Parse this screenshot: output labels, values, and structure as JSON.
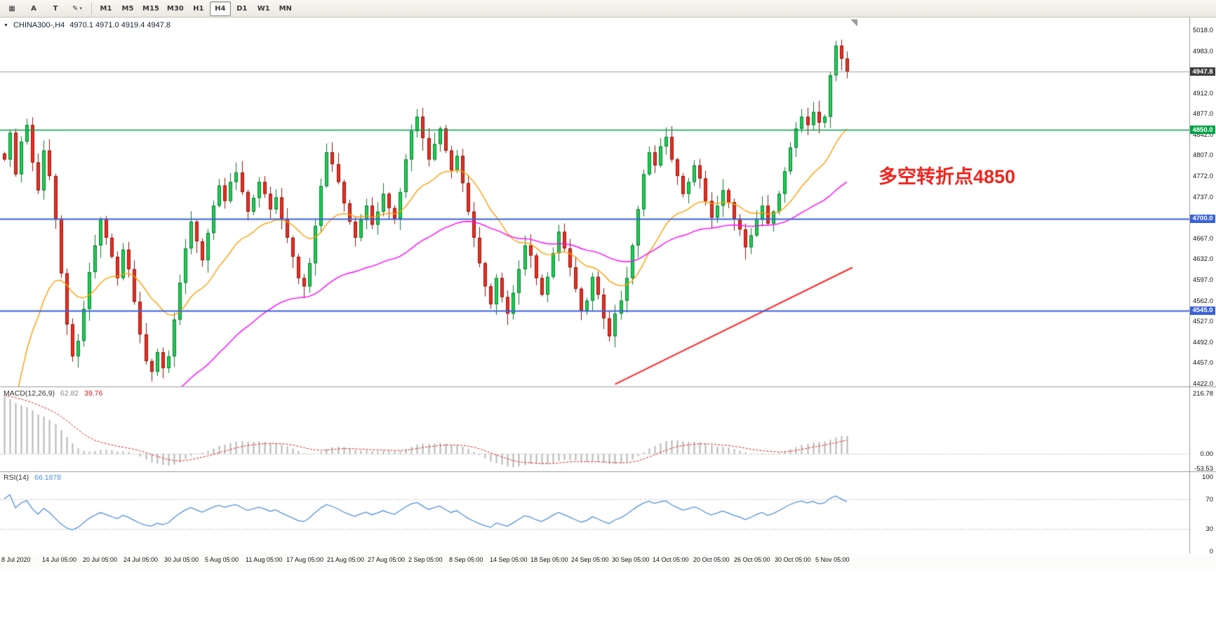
{
  "toolbar": {
    "left_icons": [
      {
        "name": "grid-icon",
        "glyph": "▦",
        "caret": false
      },
      {
        "name": "letter-a-cursor-icon",
        "glyph": "A",
        "caret": false
      },
      {
        "name": "text-tool-icon",
        "glyph": "T",
        "caret": false
      },
      {
        "name": "pencil-draw-tool-icon",
        "glyph": "✎",
        "caret": true
      }
    ],
    "caret_glyph": "▾",
    "timeframes": [
      "M1",
      "M5",
      "M15",
      "M30",
      "H1",
      "H4",
      "D1",
      "W1",
      "MN"
    ],
    "active_timeframe": "H4"
  },
  "chart": {
    "header": {
      "triangle": "▼",
      "symbol": "CHINA300-,H4",
      "ohlc": "4970.1 4971.0 4919.4 4947.8"
    },
    "shift_marker_glyph": "◥",
    "annotation": {
      "text": "多空转折点4850",
      "color": "#f1251f"
    },
    "price_axis": {
      "max": 5018,
      "min": 4422,
      "ticks": [
        "5018.0",
        "4983.0",
        "4912.0",
        "4877.0",
        "4842.0",
        "4807.0",
        "4772.0",
        "4737.0",
        "4667.0",
        "4632.0",
        "4597.0",
        "4562.0",
        "4527.0",
        "4492.0",
        "4457.0",
        "4422.0"
      ]
    },
    "price_labels": [
      {
        "label": "4947.8",
        "price": 4947.8,
        "bg": "#3f3f3f"
      },
      {
        "label": "4850.0",
        "price": 4850,
        "bg": "#00a346"
      },
      {
        "label": "4700.0",
        "price": 4700,
        "bg": "#3a62d8"
      },
      {
        "label": "4545.0",
        "price": 4545,
        "bg": "#3a62d8"
      }
    ],
    "levels": [
      {
        "price": 4850,
        "color": "#00a346",
        "width": 1.5
      },
      {
        "price": 4700,
        "color": "#3a62d8",
        "width": 2
      },
      {
        "price": 4545,
        "color": "#3a62d8",
        "width": 2
      },
      {
        "price": 4947.8,
        "color": "#a0a0a0",
        "width": 1
      }
    ],
    "trendline": {
      "from_index": 108,
      "from_price": 4421,
      "to_index": 150,
      "to_price": 4618,
      "color": "#ff2a2a"
    }
  },
  "chart_data": {
    "type": "candlestick",
    "symbol": "CHINA300-",
    "timeframe": "H4",
    "first_open": 4810,
    "closes": [
      4800,
      4845,
      4775,
      4830,
      4858,
      4795,
      4748,
      4815,
      4772,
      4700,
      4608,
      4522,
      4468,
      4494,
      4548,
      4610,
      4655,
      4700,
      4668,
      4636,
      4600,
      4648,
      4615,
      4560,
      4505,
      4460,
      4442,
      4475,
      4448,
      4468,
      4530,
      4592,
      4650,
      4695,
      4662,
      4630,
      4676,
      4722,
      4756,
      4730,
      4762,
      4778,
      4745,
      4712,
      4735,
      4762,
      4742,
      4716,
      4736,
      4700,
      4668,
      4636,
      4600,
      4586,
      4625,
      4688,
      4755,
      4812,
      4792,
      4762,
      4726,
      4695,
      4668,
      4698,
      4722,
      4690,
      4712,
      4742,
      4718,
      4700,
      4745,
      4800,
      4848,
      4872,
      4836,
      4800,
      4826,
      4852,
      4815,
      4782,
      4806,
      4760,
      4712,
      4668,
      4625,
      4586,
      4556,
      4600,
      4568,
      4540,
      4575,
      4615,
      4655,
      4638,
      4600,
      4572,
      4602,
      4642,
      4678,
      4650,
      4618,
      4582,
      4545,
      4562,
      4602,
      4572,
      4532,
      4502,
      4540,
      4562,
      4600,
      4655,
      4716,
      4775,
      4812,
      4790,
      4822,
      4838,
      4800,
      4772,
      4742,
      4762,
      4790,
      4768,
      4730,
      4702,
      4722,
      4748,
      4728,
      4700,
      4682,
      4652,
      4672,
      4700,
      4722,
      4692,
      4712,
      4742,
      4780,
      4820,
      4852,
      4872,
      4858,
      4880,
      4862,
      4872,
      4942,
      4992,
      4970,
      4947.8
    ],
    "up_color": "#1ad152",
    "up_stroke": "#0b7a2e",
    "down_color": "#ee2e21",
    "down_stroke": "#8e150d",
    "ma_fast": {
      "name": "ma-orange",
      "color": "#ff9d00",
      "alpha": 0.1,
      "seed": 4240
    },
    "ma_slow": {
      "name": "ma-magenta",
      "color": "#ff00ff",
      "alpha": 0.035,
      "seed": 4020
    }
  },
  "macd": {
    "title": "MACD(12,26,9)",
    "value_main": "62.82",
    "value_signal": "39.76",
    "axis": [
      "216.78",
      "0.00",
      "-53.53"
    ],
    "bar_color": "#b6b6b6",
    "signal_color": "#e01f1f",
    "ema12_seed": 4740,
    "ema26_seed": 4525,
    "signal_seed": 210
  },
  "rsi": {
    "title": "RSI(14)",
    "value": "66.1878",
    "axis": [
      "100",
      "70",
      "30",
      "0"
    ],
    "levels": [
      70,
      30
    ],
    "line_color": "#4f8fdc",
    "seed_gain": 12,
    "seed_loss": 5
  },
  "time_axis": {
    "labels": [
      "8 Jul 2020",
      "14 Jul 05:00",
      "20 Jul 05:00",
      "24 Jul 05:00",
      "30 Jul 05:00",
      "5 Aug 05:00",
      "11 Aug 05:00",
      "17 Aug 05:00",
      "21 Aug 05:00",
      "27 Aug 05:00",
      "2 Sep 05:00",
      "8 Sep 05:00",
      "14 Sep 05:00",
      "18 Sep 05:00",
      "24 Sep 05:00",
      "30 Sep 05:00",
      "14 Oct 05:00",
      "20 Oct 05:00",
      "26 Oct 05:00",
      "30 Oct 05:00",
      "5 Nov 05:00"
    ]
  }
}
